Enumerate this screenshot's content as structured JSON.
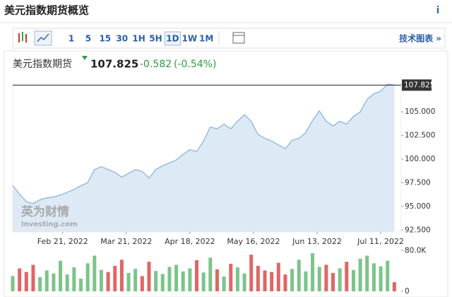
{
  "header": {
    "title": "美元指数期货概览",
    "info": "i"
  },
  "toolbar": {
    "intervals": [
      "1",
      "5",
      "15",
      "30",
      "1H",
      "5H",
      "1D",
      "1W",
      "1M"
    ],
    "active": "1D",
    "link": "技术图表 »"
  },
  "quote": {
    "name": "美元指数期货",
    "price": "107.825",
    "change": "-0.582",
    "change_pct": "(-0.54%)",
    "color": "#2e9e3e"
  },
  "watermark": {
    "brand": "英为财情",
    "site": "Investing.com"
  },
  "chart_data": [
    {
      "type": "area",
      "color": "#8ab4dc",
      "fill": "#dde9f5",
      "x": [
        "2022-01-30",
        "2022-02-02",
        "2022-02-05",
        "2022-02-08",
        "2022-02-11",
        "2022-02-14",
        "2022-02-17",
        "2022-02-20",
        "2022-02-23",
        "2022-02-26",
        "2022-03-01",
        "2022-03-04",
        "2022-03-07",
        "2022-03-10",
        "2022-03-13",
        "2022-03-16",
        "2022-03-19",
        "2022-03-22",
        "2022-03-25",
        "2022-03-28",
        "2022-03-31",
        "2022-04-03",
        "2022-04-06",
        "2022-04-09",
        "2022-04-12",
        "2022-04-15",
        "2022-04-18",
        "2022-04-21",
        "2022-04-24",
        "2022-04-27",
        "2022-04-30",
        "2022-05-03",
        "2022-05-06",
        "2022-05-09",
        "2022-05-12",
        "2022-05-15",
        "2022-05-18",
        "2022-05-21",
        "2022-05-24",
        "2022-05-27",
        "2022-05-30",
        "2022-06-02",
        "2022-06-05",
        "2022-06-08",
        "2022-06-11",
        "2022-06-14",
        "2022-06-17",
        "2022-06-20",
        "2022-06-23",
        "2022-06-26",
        "2022-06-29",
        "2022-07-02",
        "2022-07-05",
        "2022-07-08",
        "2022-07-11",
        "2022-07-14",
        "2022-07-17"
      ],
      "values": [
        97.2,
        96.3,
        95.5,
        95.3,
        95.7,
        95.9,
        96.0,
        96.2,
        96.5,
        96.8,
        97.2,
        97.5,
        98.9,
        99.2,
        98.9,
        98.6,
        98.1,
        98.5,
        98.9,
        98.7,
        98.0,
        98.9,
        99.3,
        99.6,
        99.9,
        100.5,
        101.0,
        100.8,
        101.9,
        103.4,
        103.2,
        103.7,
        103.2,
        104.0,
        104.7,
        104.0,
        102.6,
        102.2,
        101.9,
        101.5,
        101.1,
        102.0,
        102.2,
        102.8,
        104.1,
        105.1,
        104.0,
        103.5,
        104.0,
        103.7,
        104.5,
        105.0,
        106.3,
        106.9,
        107.2,
        107.9,
        107.825
      ],
      "xlim": [
        "2022-01-30",
        "2022-07-20"
      ],
      "xticks": [
        {
          "value": "2022-02-21",
          "label": "Feb 21, 2022"
        },
        {
          "value": "2022-03-21",
          "label": "Mar 21, 2022"
        },
        {
          "value": "2022-04-18",
          "label": "Apr 18, 2022"
        },
        {
          "value": "2022-05-16",
          "label": "May 16, 2022"
        },
        {
          "value": "2022-06-13",
          "label": "Jun 13, 2022"
        },
        {
          "value": "2022-07-11",
          "label": "Jul 11, 2022"
        }
      ],
      "ylim": [
        92.3,
        108.0
      ],
      "yticks": [
        {
          "value": 92.5,
          "label": "92.500"
        },
        {
          "value": 95,
          "label": "95.000"
        },
        {
          "value": 97.5,
          "label": "97.500"
        },
        {
          "value": 100,
          "label": "100.000"
        },
        {
          "value": 102.5,
          "label": "102.500"
        },
        {
          "value": 105,
          "label": "105.000"
        }
      ],
      "last_price": {
        "value": 107.825,
        "label": "107.825"
      }
    },
    {
      "type": "bar",
      "x": [
        "2022-01-30",
        "2022-02-02",
        "2022-02-05",
        "2022-02-08",
        "2022-02-11",
        "2022-02-14",
        "2022-02-17",
        "2022-02-20",
        "2022-02-23",
        "2022-02-26",
        "2022-03-01",
        "2022-03-04",
        "2022-03-07",
        "2022-03-10",
        "2022-03-13",
        "2022-03-16",
        "2022-03-19",
        "2022-03-22",
        "2022-03-25",
        "2022-03-28",
        "2022-03-31",
        "2022-04-03",
        "2022-04-06",
        "2022-04-09",
        "2022-04-12",
        "2022-04-15",
        "2022-04-18",
        "2022-04-21",
        "2022-04-24",
        "2022-04-27",
        "2022-04-30",
        "2022-05-03",
        "2022-05-06",
        "2022-05-09",
        "2022-05-12",
        "2022-05-15",
        "2022-05-18",
        "2022-05-21",
        "2022-05-24",
        "2022-05-27",
        "2022-05-30",
        "2022-06-02",
        "2022-06-05",
        "2022-06-08",
        "2022-06-11",
        "2022-06-14",
        "2022-06-17",
        "2022-06-20",
        "2022-06-23",
        "2022-06-26",
        "2022-06-29",
        "2022-07-02",
        "2022-07-05",
        "2022-07-08",
        "2022-07-11",
        "2022-07-14",
        "2022-07-17"
      ],
      "values": [
        30000,
        45000,
        38000,
        52000,
        28000,
        41000,
        35000,
        60000,
        33000,
        47000,
        25000,
        55000,
        70000,
        42000,
        38000,
        50000,
        62000,
        36000,
        44000,
        30000,
        58000,
        40000,
        34000,
        48000,
        52000,
        39000,
        45000,
        61000,
        37000,
        66000,
        43000,
        29000,
        54000,
        47000,
        35000,
        72000,
        50000,
        41000,
        38000,
        56000,
        33000,
        44000,
        62000,
        39000,
        75000,
        48000,
        52000,
        36000,
        45000,
        58000,
        42000,
        64000,
        70000,
        55000,
        49000,
        60000,
        18000
      ],
      "colors": [
        "#7cc48a",
        "#e06666",
        "#e06666",
        "#e06666",
        "#7cc48a",
        "#7cc48a",
        "#7cc48a",
        "#7cc48a",
        "#7cc48a",
        "#7cc48a",
        "#7cc48a",
        "#7cc48a",
        "#7cc48a",
        "#7cc48a",
        "#e06666",
        "#e06666",
        "#e06666",
        "#7cc48a",
        "#7cc48a",
        "#e06666",
        "#e06666",
        "#7cc48a",
        "#7cc48a",
        "#7cc48a",
        "#7cc48a",
        "#7cc48a",
        "#7cc48a",
        "#e06666",
        "#7cc48a",
        "#7cc48a",
        "#e06666",
        "#7cc48a",
        "#e06666",
        "#7cc48a",
        "#7cc48a",
        "#e06666",
        "#e06666",
        "#e06666",
        "#e06666",
        "#e06666",
        "#e06666",
        "#7cc48a",
        "#7cc48a",
        "#7cc48a",
        "#7cc48a",
        "#7cc48a",
        "#e06666",
        "#e06666",
        "#7cc48a",
        "#e06666",
        "#7cc48a",
        "#7cc48a",
        "#7cc48a",
        "#7cc48a",
        "#7cc48a",
        "#7cc48a",
        "#e06666"
      ],
      "xlim": [
        "2022-01-30",
        "2022-07-20"
      ],
      "ylim": [
        0,
        86000
      ],
      "yticks": [
        0,
        {
          "value": 80000,
          "label": "80.0K"
        }
      ]
    }
  ]
}
